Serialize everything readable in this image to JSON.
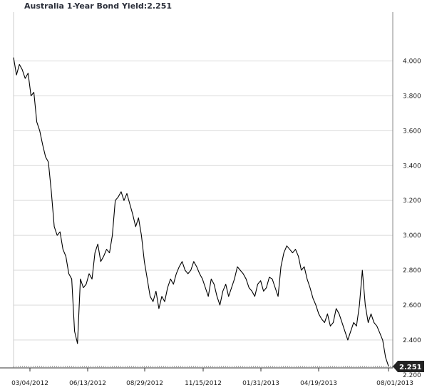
{
  "header": {
    "title": "Australia 1-Year Bond Yield:2.251"
  },
  "chart_data": {
    "type": "line",
    "title": "Australia 1-Year Bond Yield:2.251",
    "xlabel": "",
    "ylabel": "",
    "grid": true,
    "ylim": [
      2.24,
      4.28
    ],
    "y_ticks": [
      "2.200",
      "2.400",
      "2.600",
      "2.800",
      "3.000",
      "3.200",
      "3.400",
      "3.600",
      "3.800",
      "4.000"
    ],
    "x_ticks": [
      "03/04/2012",
      "06/13/2012",
      "08/29/2012",
      "11/15/2012",
      "01/31/2013",
      "04/19/2013",
      "08/01/2013"
    ],
    "last_value": "2.251",
    "series": [
      {
        "color": "#000000",
        "x": [
          "2012-03-04",
          "2012-03-08",
          "2012-03-12",
          "2012-03-16",
          "2012-03-20",
          "2012-03-24",
          "2012-03-28",
          "2012-04-01",
          "2012-04-05",
          "2012-04-09",
          "2012-04-13",
          "2012-04-17",
          "2012-04-21",
          "2012-04-25",
          "2012-04-29",
          "2012-05-03",
          "2012-05-07",
          "2012-05-11",
          "2012-05-15",
          "2012-05-19",
          "2012-05-23",
          "2012-05-27",
          "2012-05-31",
          "2012-06-04",
          "2012-06-08",
          "2012-06-12",
          "2012-06-16",
          "2012-06-20",
          "2012-06-24",
          "2012-06-28",
          "2012-07-02",
          "2012-07-06",
          "2012-07-10",
          "2012-07-14",
          "2012-07-18",
          "2012-07-22",
          "2012-07-26",
          "2012-07-30",
          "2012-08-03",
          "2012-08-07",
          "2012-08-11",
          "2012-08-15",
          "2012-08-19",
          "2012-08-23",
          "2012-08-27",
          "2012-08-31",
          "2012-09-04",
          "2012-09-08",
          "2012-09-12",
          "2012-09-16",
          "2012-09-20",
          "2012-09-24",
          "2012-09-28",
          "2012-10-02",
          "2012-10-06",
          "2012-10-10",
          "2012-10-14",
          "2012-10-18",
          "2012-10-22",
          "2012-10-26",
          "2012-10-30",
          "2012-11-03",
          "2012-11-07",
          "2012-11-11",
          "2012-11-15",
          "2012-11-19",
          "2012-11-23",
          "2012-11-27",
          "2012-12-01",
          "2012-12-05",
          "2012-12-09",
          "2012-12-13",
          "2012-12-17",
          "2012-12-21",
          "2012-12-25",
          "2012-12-29",
          "2013-01-02",
          "2013-01-06",
          "2013-01-10",
          "2013-01-14",
          "2013-01-18",
          "2013-01-22",
          "2013-01-26",
          "2013-01-30",
          "2013-02-03",
          "2013-02-07",
          "2013-02-11",
          "2013-02-15",
          "2013-02-19",
          "2013-02-23",
          "2013-02-27",
          "2013-03-03",
          "2013-03-07",
          "2013-03-11",
          "2013-03-15",
          "2013-03-19",
          "2013-03-23",
          "2013-03-27",
          "2013-03-31",
          "2013-04-04",
          "2013-04-08",
          "2013-04-12",
          "2013-04-16",
          "2013-04-20",
          "2013-04-24",
          "2013-04-28",
          "2013-05-02",
          "2013-05-06",
          "2013-05-10",
          "2013-05-14",
          "2013-05-18",
          "2013-05-22",
          "2013-05-26",
          "2013-05-30",
          "2013-06-03",
          "2013-06-07",
          "2013-06-11",
          "2013-06-15",
          "2013-06-19",
          "2013-06-23",
          "2013-06-27",
          "2013-07-01",
          "2013-07-05",
          "2013-07-09",
          "2013-07-13",
          "2013-07-17",
          "2013-07-21",
          "2013-07-25",
          "2013-07-29",
          "2013-08-02"
        ],
        "values": [
          4.02,
          3.92,
          3.98,
          3.95,
          3.9,
          3.93,
          3.8,
          3.82,
          3.65,
          3.6,
          3.52,
          3.45,
          3.42,
          3.25,
          3.05,
          3.0,
          3.02,
          2.92,
          2.88,
          2.78,
          2.75,
          2.45,
          2.38,
          2.75,
          2.7,
          2.72,
          2.78,
          2.75,
          2.9,
          2.95,
          2.85,
          2.88,
          2.92,
          2.9,
          3.0,
          3.2,
          3.22,
          3.25,
          3.2,
          3.24,
          3.18,
          3.12,
          3.05,
          3.1,
          3.0,
          2.85,
          2.75,
          2.65,
          2.62,
          2.68,
          2.58,
          2.65,
          2.62,
          2.7,
          2.75,
          2.72,
          2.78,
          2.82,
          2.85,
          2.8,
          2.78,
          2.8,
          2.85,
          2.82,
          2.78,
          2.75,
          2.7,
          2.65,
          2.75,
          2.72,
          2.65,
          2.6,
          2.68,
          2.72,
          2.65,
          2.7,
          2.75,
          2.82,
          2.8,
          2.78,
          2.75,
          2.7,
          2.68,
          2.65,
          2.72,
          2.74,
          2.68,
          2.7,
          2.76,
          2.75,
          2.7,
          2.65,
          2.82,
          2.9,
          2.94,
          2.92,
          2.9,
          2.92,
          2.88,
          2.8,
          2.82,
          2.75,
          2.7,
          2.64,
          2.6,
          2.55,
          2.52,
          2.5,
          2.55,
          2.48,
          2.5,
          2.58,
          2.55,
          2.5,
          2.45,
          2.4,
          2.45,
          2.5,
          2.48,
          2.6,
          2.8,
          2.6,
          2.5,
          2.55,
          2.5,
          2.48,
          2.44,
          2.4,
          2.3,
          2.25
        ]
      }
    ]
  }
}
